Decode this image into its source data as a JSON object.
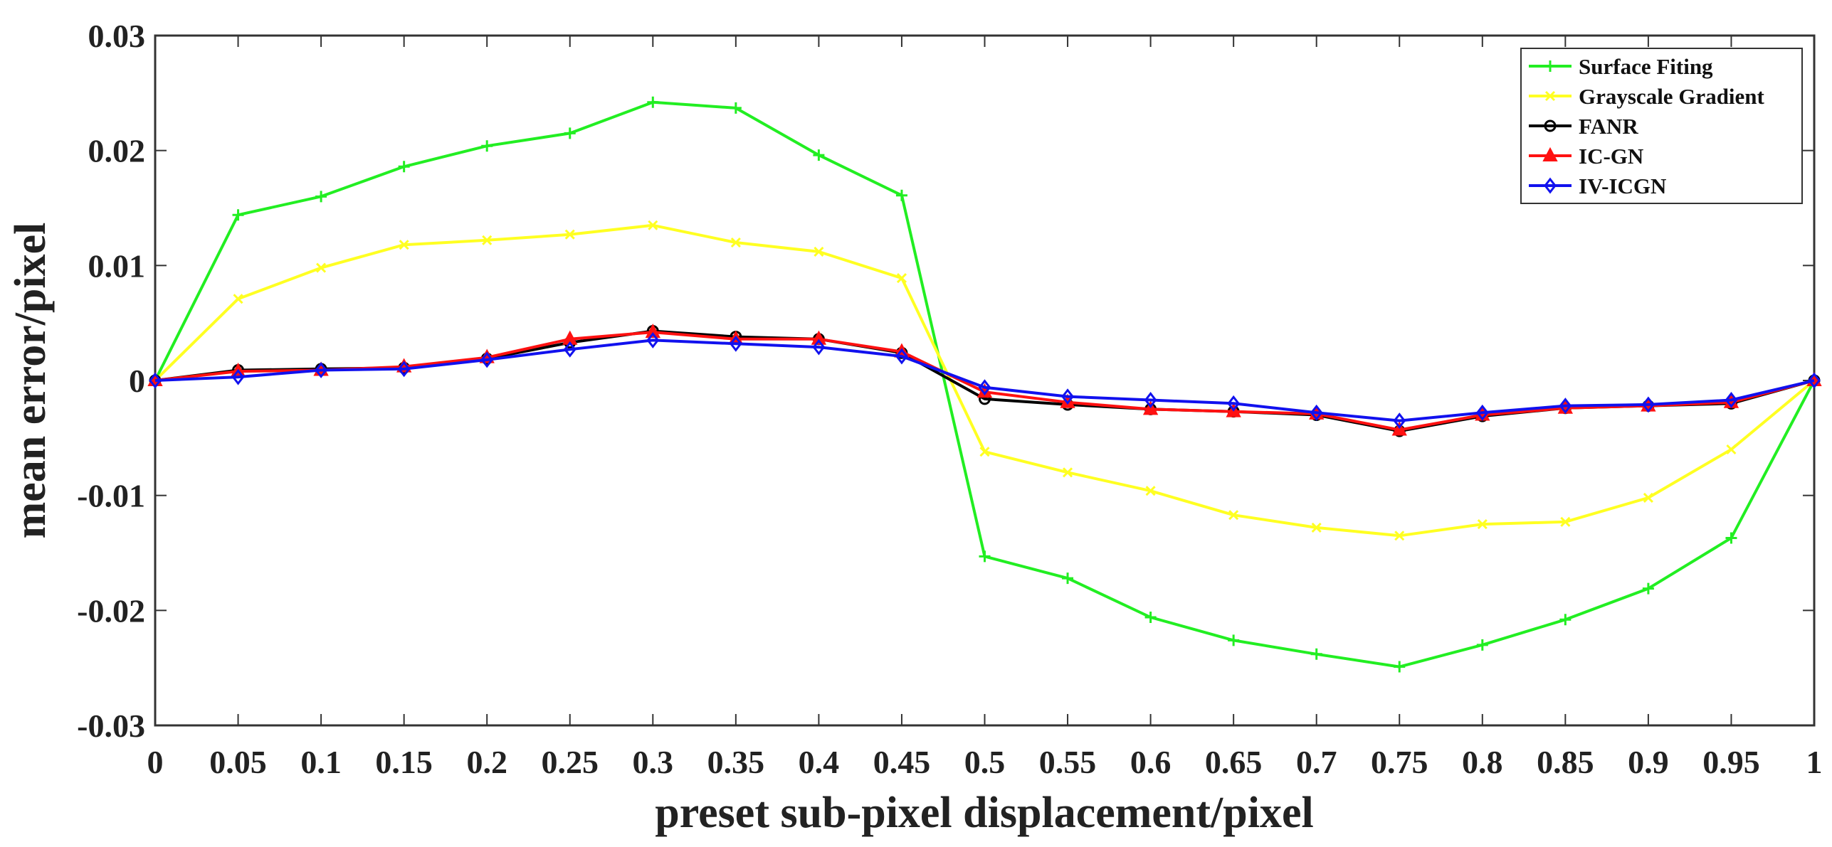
{
  "chart_data": {
    "type": "line",
    "title": "",
    "xlabel": "preset sub-pixel displacement/pixel",
    "ylabel": "mean error/pixel",
    "xlim": [
      0,
      1
    ],
    "ylim": [
      -0.03,
      0.03
    ],
    "grid": false,
    "legend_position": "top-right",
    "x": [
      0,
      0.05,
      0.1,
      0.15,
      0.2,
      0.25,
      0.3,
      0.35,
      0.4,
      0.45,
      0.5,
      0.55,
      0.6,
      0.65,
      0.7,
      0.75,
      0.8,
      0.85,
      0.9,
      0.95,
      1
    ],
    "x_tick_labels": [
      "0",
      "0.05",
      "0.1",
      "0.15",
      "0.2",
      "0.25",
      "0.3",
      "0.35",
      "0.4",
      "0.45",
      "0.5",
      "0.55",
      "0.6",
      "0.65",
      "0.7",
      "0.75",
      "0.8",
      "0.85",
      "0.9",
      "0.95",
      "1"
    ],
    "y_ticks": [
      0.03,
      0.02,
      0.01,
      0,
      -0.01,
      -0.02,
      -0.03
    ],
    "y_tick_labels": [
      "0.03",
      "0.02",
      "0.01",
      "0",
      "-0.01",
      "-0.02",
      "-0.03"
    ],
    "series": [
      {
        "name": "Surface Fiting",
        "color": "#22ee22",
        "marker": "plus",
        "values": [
          0,
          0.0144,
          0.016,
          0.0186,
          0.0204,
          0.0215,
          0.0242,
          0.0237,
          0.0196,
          0.0161,
          -0.0153,
          -0.0172,
          -0.0206,
          -0.0226,
          -0.0238,
          -0.0249,
          -0.023,
          -0.0208,
          -0.0181,
          -0.0137,
          0
        ]
      },
      {
        "name": "Grayscale Gradient",
        "color": "#ffff22",
        "marker": "x",
        "values": [
          0,
          0.0071,
          0.0098,
          0.0118,
          0.0122,
          0.0127,
          0.0135,
          0.012,
          0.0112,
          0.0089,
          -0.0062,
          -0.008,
          -0.0096,
          -0.0117,
          -0.0128,
          -0.0135,
          -0.0125,
          -0.0123,
          -0.0102,
          -0.006,
          0
        ]
      },
      {
        "name": "FANR",
        "color": "#000000",
        "marker": "circle",
        "values": [
          0,
          0.0009,
          0.001,
          0.0011,
          0.0019,
          0.0033,
          0.0043,
          0.0038,
          0.0036,
          0.0024,
          -0.0016,
          -0.0021,
          -0.0025,
          -0.0027,
          -0.003,
          -0.0044,
          -0.0031,
          -0.0024,
          -0.0022,
          -0.002,
          0
        ]
      },
      {
        "name": "IC-GN",
        "color": "#ff1111",
        "marker": "triangle",
        "values": [
          0,
          0.0008,
          0.0009,
          0.0012,
          0.002,
          0.0036,
          0.0042,
          0.0036,
          0.0036,
          0.0025,
          -0.001,
          -0.0019,
          -0.0025,
          -0.0027,
          -0.0029,
          -0.0043,
          -0.003,
          -0.0024,
          -0.0022,
          -0.0019,
          0
        ]
      },
      {
        "name": "IV-ICGN",
        "color": "#1111ee",
        "marker": "diamond",
        "values": [
          0,
          0.0003,
          0.0009,
          0.001,
          0.0018,
          0.0027,
          0.0035,
          0.0032,
          0.0029,
          0.0021,
          -0.0006,
          -0.0014,
          -0.0017,
          -0.002,
          -0.0028,
          -0.0035,
          -0.0028,
          -0.0022,
          -0.0021,
          -0.0017,
          0
        ]
      }
    ]
  }
}
